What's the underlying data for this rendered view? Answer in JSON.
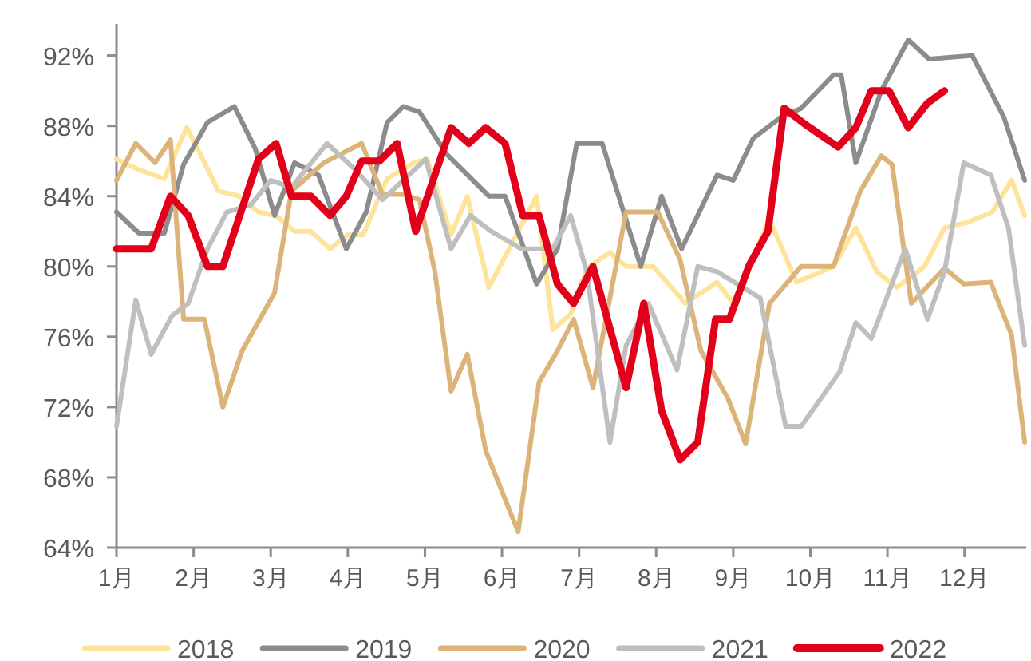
{
  "chart_data": {
    "type": "line",
    "xlim": [
      1,
      12.8
    ],
    "xticks": [
      {
        "value": 1,
        "label": "1月"
      },
      {
        "value": 2,
        "label": "2月"
      },
      {
        "value": 3,
        "label": "3月"
      },
      {
        "value": 4,
        "label": "4月"
      },
      {
        "value": 5,
        "label": "5月"
      },
      {
        "value": 6,
        "label": "6月"
      },
      {
        "value": 7,
        "label": "7月"
      },
      {
        "value": 8,
        "label": "8月"
      },
      {
        "value": 9,
        "label": "9月"
      },
      {
        "value": 10,
        "label": "10月"
      },
      {
        "value": 11,
        "label": "11月"
      },
      {
        "value": 12,
        "label": "12月"
      }
    ],
    "ylim": [
      64,
      93.8
    ],
    "yticks": [
      {
        "value": 64,
        "label": "64%"
      },
      {
        "value": 68,
        "label": "68%"
      },
      {
        "value": 72,
        "label": "72%"
      },
      {
        "value": 76,
        "label": "76%"
      },
      {
        "value": 80,
        "label": "80%"
      },
      {
        "value": 84,
        "label": "84%"
      },
      {
        "value": 88,
        "label": "88%"
      },
      {
        "value": 92,
        "label": "92%"
      }
    ],
    "legend": "bottom",
    "series": [
      {
        "name": "2018",
        "color": "#fde49a",
        "x": [
          1.0,
          1.29,
          1.62,
          1.91,
          2.12,
          2.32,
          2.59,
          2.84,
          3.07,
          3.31,
          3.52,
          3.77,
          4.0,
          4.2,
          4.51,
          4.86,
          5.03,
          5.34,
          5.55,
          5.83,
          6.45,
          6.66,
          6.89,
          7.1,
          7.4,
          7.61,
          7.96,
          8.38,
          8.79,
          9.0,
          9.47,
          9.82,
          10.3,
          10.59,
          10.86,
          11.12,
          11.48,
          11.74,
          12.03,
          12.36,
          12.61,
          12.78
        ],
        "values": [
          86.1,
          85.5,
          85,
          87.9,
          86.1,
          84.3,
          84,
          83.1,
          82.9,
          82,
          82,
          81,
          81.8,
          81.8,
          85,
          85.9,
          86.1,
          81.8,
          84,
          78.8,
          84,
          76.4,
          77.3,
          79.9,
          80.8,
          80,
          80,
          77.9,
          79.1,
          77.9,
          82.7,
          79.1,
          80,
          82.2,
          79.7,
          78.8,
          80,
          82.2,
          82.5,
          83.1,
          84.9,
          82.9
        ]
      },
      {
        "name": "2019",
        "color": "#8c8c8c",
        "x": [
          1.0,
          1.29,
          1.62,
          1.87,
          2.18,
          2.53,
          2.8,
          3.05,
          3.31,
          3.62,
          3.98,
          4.24,
          4.51,
          4.72,
          4.93,
          5.28,
          5.83,
          6.04,
          6.45,
          6.72,
          6.97,
          7.3,
          7.8,
          8.07,
          8.33,
          8.79,
          9.0,
          9.26,
          9.62,
          9.88,
          10.3,
          10.4,
          10.59,
          10.92,
          11.27,
          11.54,
          12.1,
          12.51,
          12.78
        ],
        "values": [
          83.1,
          81.9,
          81.9,
          85.8,
          88.2,
          89.1,
          86.7,
          82.9,
          85.9,
          85.2,
          81,
          83.1,
          88.2,
          89.1,
          88.8,
          86.4,
          84,
          84,
          79,
          81,
          87,
          87,
          80,
          84,
          81,
          85.2,
          84.9,
          87.3,
          88.5,
          89,
          90.9,
          90.9,
          85.9,
          90,
          92.9,
          91.8,
          92,
          88.5,
          84.9
        ]
      },
      {
        "name": "2020",
        "color": "#dcb47a",
        "x": [
          1.0,
          1.25,
          1.5,
          1.7,
          1.87,
          2.14,
          2.38,
          2.63,
          3.05,
          3.27,
          3.69,
          4.18,
          4.45,
          4.72,
          4.93,
          5.13,
          5.34,
          5.55,
          5.79,
          6.21,
          6.48,
          6.72,
          6.93,
          7.18,
          7.61,
          8.02,
          8.31,
          8.58,
          8.93,
          9.16,
          9.47,
          9.88,
          10.3,
          10.65,
          10.92,
          11.06,
          11.31,
          11.74,
          11.99,
          12.34,
          12.61,
          12.78
        ],
        "values": [
          84.9,
          87,
          85.9,
          87.2,
          77,
          77,
          72,
          75.2,
          78.5,
          84.3,
          85.9,
          87,
          84.1,
          84.1,
          83.8,
          79.7,
          72.9,
          75,
          69.5,
          64.9,
          73.4,
          75.2,
          77,
          73.1,
          83.1,
          83.1,
          80.4,
          75.2,
          72.5,
          69.9,
          77.9,
          80,
          80,
          84.3,
          86.3,
          85.8,
          77.9,
          79.9,
          79,
          79.1,
          76.1,
          70
        ]
      },
      {
        "name": "2021",
        "color": "#bfbfbf",
        "x": [
          1.0,
          1.25,
          1.45,
          1.72,
          1.93,
          2.18,
          2.43,
          2.74,
          3.0,
          3.27,
          3.73,
          4.1,
          4.45,
          4.72,
          5.01,
          5.34,
          5.59,
          5.86,
          6.25,
          6.66,
          6.89,
          7.1,
          7.4,
          7.61,
          7.9,
          8.27,
          8.54,
          8.79,
          9.35,
          9.68,
          9.88,
          10.38,
          10.59,
          10.79,
          11.23,
          11.52,
          11.74,
          11.99,
          12.34,
          12.57,
          12.78
        ],
        "values": [
          70.9,
          78.1,
          75,
          77.2,
          77.9,
          81,
          83.1,
          83.5,
          84.9,
          84.5,
          87,
          85.5,
          83.8,
          84.9,
          86.1,
          81,
          82.9,
          82,
          81,
          81,
          82.9,
          79.7,
          70,
          75.5,
          77.9,
          74.1,
          80,
          79.7,
          78.2,
          70.9,
          70.9,
          74,
          76.8,
          75.9,
          81,
          77,
          79.7,
          85.9,
          85.2,
          82.2,
          75.5
        ]
      },
      {
        "name": "2022",
        "color": "#e3001b",
        "x": [
          1.0,
          1.45,
          1.7,
          1.93,
          2.18,
          2.38,
          2.84,
          3.07,
          3.27,
          3.52,
          3.77,
          3.98,
          4.18,
          4.41,
          4.64,
          4.88,
          5.34,
          5.57,
          5.79,
          6.04,
          6.27,
          6.48,
          6.72,
          6.93,
          7.18,
          7.61,
          7.84,
          8.07,
          8.31,
          8.54,
          8.77,
          8.95,
          9.2,
          9.45,
          9.66,
          9.93,
          10.36,
          10.59,
          10.79,
          11.02,
          11.27,
          11.52,
          11.74
        ],
        "values": [
          81,
          81,
          84,
          82.9,
          80,
          80,
          86.1,
          87,
          84,
          84,
          82.9,
          84,
          86,
          86,
          87,
          82,
          87.9,
          87,
          87.9,
          87,
          82.9,
          82.9,
          79,
          77.9,
          80,
          73.1,
          77.9,
          71.8,
          69,
          70,
          77,
          77,
          80,
          82,
          89,
          88.1,
          86.8,
          87.9,
          90,
          90,
          87.9,
          89.3,
          90
        ]
      }
    ]
  }
}
